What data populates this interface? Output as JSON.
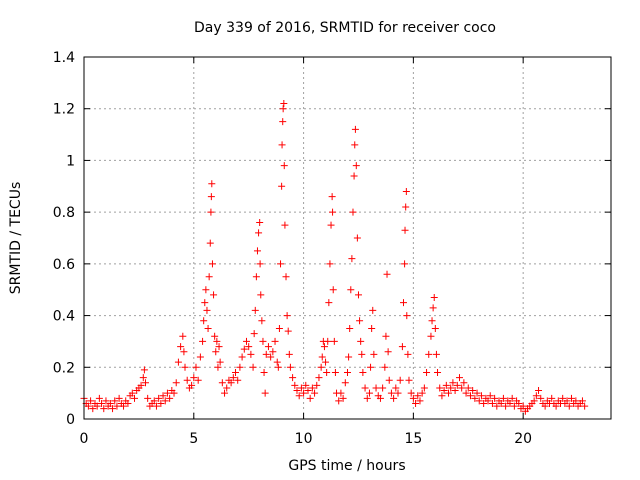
{
  "chart_data": {
    "type": "scatter",
    "title": "Day 339 of 2016, SRMTID for receiver coco",
    "xlabel": "GPS time / hours",
    "ylabel": "SRMTID / TECUs",
    "xlim": [
      0,
      24
    ],
    "ylim": [
      0,
      1.4
    ],
    "xticks": [
      0,
      5,
      10,
      15,
      20
    ],
    "yticks": [
      0,
      0.2,
      0.4,
      0.6,
      0.8,
      1,
      1.2,
      1.4
    ],
    "xtick_labels": [
      "0",
      "5",
      "10",
      "15",
      "20"
    ],
    "ytick_labels": [
      "0",
      "0.2",
      "0.4",
      "0.6",
      "0.8",
      "1",
      "1.2",
      "1.4"
    ],
    "grid": true,
    "marker": "+",
    "color": "#ff0000",
    "series": [
      {
        "name": "SRMTID",
        "points": [
          [
            0.0,
            0.08
          ],
          [
            0.1,
            0.06
          ],
          [
            0.2,
            0.05
          ],
          [
            0.3,
            0.07
          ],
          [
            0.4,
            0.04
          ],
          [
            0.5,
            0.06
          ],
          [
            0.6,
            0.05
          ],
          [
            0.7,
            0.08
          ],
          [
            0.8,
            0.06
          ],
          [
            0.9,
            0.04
          ],
          [
            1.0,
            0.07
          ],
          [
            1.1,
            0.05
          ],
          [
            1.2,
            0.06
          ],
          [
            1.3,
            0.04
          ],
          [
            1.4,
            0.07
          ],
          [
            1.5,
            0.05
          ],
          [
            1.6,
            0.08
          ],
          [
            1.7,
            0.06
          ],
          [
            1.8,
            0.05
          ],
          [
            1.9,
            0.07
          ],
          [
            2.0,
            0.06
          ],
          [
            2.1,
            0.09
          ],
          [
            2.2,
            0.1
          ],
          [
            2.3,
            0.08
          ],
          [
            2.4,
            0.11
          ],
          [
            2.5,
            0.12
          ],
          [
            2.6,
            0.13
          ],
          [
            2.7,
            0.16
          ],
          [
            2.75,
            0.19
          ],
          [
            2.8,
            0.14
          ],
          [
            2.9,
            0.08
          ],
          [
            3.0,
            0.05
          ],
          [
            3.1,
            0.06
          ],
          [
            3.2,
            0.07
          ],
          [
            3.3,
            0.05
          ],
          [
            3.4,
            0.08
          ],
          [
            3.5,
            0.06
          ],
          [
            3.6,
            0.09
          ],
          [
            3.7,
            0.07
          ],
          [
            3.8,
            0.1
          ],
          [
            3.9,
            0.08
          ],
          [
            4.0,
            0.11
          ],
          [
            4.1,
            0.1
          ],
          [
            4.2,
            0.14
          ],
          [
            4.3,
            0.22
          ],
          [
            4.4,
            0.28
          ],
          [
            4.5,
            0.32
          ],
          [
            4.55,
            0.26
          ],
          [
            4.6,
            0.2
          ],
          [
            4.7,
            0.15
          ],
          [
            4.8,
            0.12
          ],
          [
            4.9,
            0.13
          ],
          [
            5.0,
            0.16
          ],
          [
            5.1,
            0.2
          ],
          [
            5.2,
            0.15
          ],
          [
            5.3,
            0.24
          ],
          [
            5.4,
            0.3
          ],
          [
            5.45,
            0.38
          ],
          [
            5.5,
            0.45
          ],
          [
            5.55,
            0.5
          ],
          [
            5.6,
            0.42
          ],
          [
            5.65,
            0.35
          ],
          [
            5.7,
            0.55
          ],
          [
            5.75,
            0.68
          ],
          [
            5.78,
            0.8
          ],
          [
            5.8,
            0.86
          ],
          [
            5.82,
            0.91
          ],
          [
            5.85,
            0.6
          ],
          [
            5.9,
            0.48
          ],
          [
            5.95,
            0.32
          ],
          [
            6.0,
            0.26
          ],
          [
            6.05,
            0.3
          ],
          [
            6.1,
            0.2
          ],
          [
            6.15,
            0.28
          ],
          [
            6.2,
            0.22
          ],
          [
            6.3,
            0.14
          ],
          [
            6.4,
            0.1
          ],
          [
            6.5,
            0.12
          ],
          [
            6.6,
            0.15
          ],
          [
            6.7,
            0.14
          ],
          [
            6.8,
            0.16
          ],
          [
            6.9,
            0.18
          ],
          [
            7.0,
            0.15
          ],
          [
            7.1,
            0.2
          ],
          [
            7.2,
            0.24
          ],
          [
            7.3,
            0.27
          ],
          [
            7.4,
            0.3
          ],
          [
            7.5,
            0.28
          ],
          [
            7.6,
            0.25
          ],
          [
            7.7,
            0.2
          ],
          [
            7.75,
            0.33
          ],
          [
            7.8,
            0.42
          ],
          [
            7.85,
            0.55
          ],
          [
            7.9,
            0.65
          ],
          [
            7.95,
            0.72
          ],
          [
            8.0,
            0.76
          ],
          [
            8.02,
            0.6
          ],
          [
            8.05,
            0.48
          ],
          [
            8.1,
            0.38
          ],
          [
            8.15,
            0.3
          ],
          [
            8.2,
            0.18
          ],
          [
            8.25,
            0.1
          ],
          [
            8.3,
            0.25
          ],
          [
            8.4,
            0.28
          ],
          [
            8.5,
            0.24
          ],
          [
            8.6,
            0.26
          ],
          [
            8.7,
            0.3
          ],
          [
            8.8,
            0.22
          ],
          [
            8.85,
            0.2
          ],
          [
            8.9,
            0.35
          ],
          [
            8.95,
            0.6
          ],
          [
            9.0,
            0.9
          ],
          [
            9.02,
            1.06
          ],
          [
            9.05,
            1.15
          ],
          [
            9.07,
            1.2
          ],
          [
            9.1,
            1.22
          ],
          [
            9.12,
            0.98
          ],
          [
            9.15,
            0.75
          ],
          [
            9.2,
            0.55
          ],
          [
            9.25,
            0.4
          ],
          [
            9.3,
            0.34
          ],
          [
            9.35,
            0.25
          ],
          [
            9.4,
            0.2
          ],
          [
            9.5,
            0.16
          ],
          [
            9.6,
            0.13
          ],
          [
            9.7,
            0.11
          ],
          [
            9.8,
            0.09
          ],
          [
            9.9,
            0.12
          ],
          [
            10.0,
            0.1
          ],
          [
            10.1,
            0.13
          ],
          [
            10.2,
            0.11
          ],
          [
            10.3,
            0.08
          ],
          [
            10.4,
            0.12
          ],
          [
            10.5,
            0.1
          ],
          [
            10.6,
            0.13
          ],
          [
            10.7,
            0.16
          ],
          [
            10.8,
            0.2
          ],
          [
            10.85,
            0.24
          ],
          [
            10.9,
            0.3
          ],
          [
            10.95,
            0.28
          ],
          [
            11.0,
            0.22
          ],
          [
            11.05,
            0.18
          ],
          [
            11.1,
            0.3
          ],
          [
            11.15,
            0.45
          ],
          [
            11.2,
            0.6
          ],
          [
            11.25,
            0.75
          ],
          [
            11.3,
            0.86
          ],
          [
            11.32,
            0.8
          ],
          [
            11.35,
            0.5
          ],
          [
            11.4,
            0.3
          ],
          [
            11.45,
            0.18
          ],
          [
            11.5,
            0.1
          ],
          [
            11.6,
            0.07
          ],
          [
            11.7,
            0.1
          ],
          [
            11.8,
            0.08
          ],
          [
            11.9,
            0.14
          ],
          [
            12.0,
            0.18
          ],
          [
            12.05,
            0.24
          ],
          [
            12.1,
            0.35
          ],
          [
            12.15,
            0.5
          ],
          [
            12.2,
            0.62
          ],
          [
            12.25,
            0.8
          ],
          [
            12.3,
            0.94
          ],
          [
            12.33,
            1.06
          ],
          [
            12.36,
            1.12
          ],
          [
            12.4,
            0.98
          ],
          [
            12.45,
            0.7
          ],
          [
            12.5,
            0.48
          ],
          [
            12.55,
            0.38
          ],
          [
            12.6,
            0.3
          ],
          [
            12.65,
            0.25
          ],
          [
            12.7,
            0.18
          ],
          [
            12.8,
            0.12
          ],
          [
            12.9,
            0.08
          ],
          [
            13.0,
            0.1
          ],
          [
            13.05,
            0.2
          ],
          [
            13.1,
            0.35
          ],
          [
            13.15,
            0.42
          ],
          [
            13.2,
            0.25
          ],
          [
            13.3,
            0.12
          ],
          [
            13.4,
            0.09
          ],
          [
            13.5,
            0.08
          ],
          [
            13.6,
            0.12
          ],
          [
            13.7,
            0.2
          ],
          [
            13.75,
            0.32
          ],
          [
            13.8,
            0.56
          ],
          [
            13.85,
            0.26
          ],
          [
            13.9,
            0.15
          ],
          [
            14.0,
            0.1
          ],
          [
            14.1,
            0.08
          ],
          [
            14.2,
            0.12
          ],
          [
            14.3,
            0.1
          ],
          [
            14.4,
            0.15
          ],
          [
            14.5,
            0.28
          ],
          [
            14.55,
            0.45
          ],
          [
            14.6,
            0.6
          ],
          [
            14.62,
            0.73
          ],
          [
            14.65,
            0.82
          ],
          [
            14.68,
            0.88
          ],
          [
            14.7,
            0.4
          ],
          [
            14.75,
            0.25
          ],
          [
            14.8,
            0.15
          ],
          [
            14.9,
            0.1
          ],
          [
            15.0,
            0.08
          ],
          [
            15.1,
            0.06
          ],
          [
            15.2,
            0.09
          ],
          [
            15.3,
            0.07
          ],
          [
            15.4,
            0.1
          ],
          [
            15.5,
            0.12
          ],
          [
            15.6,
            0.18
          ],
          [
            15.7,
            0.25
          ],
          [
            15.8,
            0.32
          ],
          [
            15.85,
            0.38
          ],
          [
            15.9,
            0.43
          ],
          [
            15.95,
            0.47
          ],
          [
            16.0,
            0.35
          ],
          [
            16.05,
            0.25
          ],
          [
            16.1,
            0.18
          ],
          [
            16.2,
            0.12
          ],
          [
            16.3,
            0.09
          ],
          [
            16.4,
            0.11
          ],
          [
            16.5,
            0.13
          ],
          [
            16.6,
            0.1
          ],
          [
            16.7,
            0.12
          ],
          [
            16.8,
            0.14
          ],
          [
            16.9,
            0.11
          ],
          [
            17.0,
            0.13
          ],
          [
            17.1,
            0.16
          ],
          [
            17.2,
            0.12
          ],
          [
            17.3,
            0.14
          ],
          [
            17.4,
            0.1
          ],
          [
            17.5,
            0.12
          ],
          [
            17.6,
            0.09
          ],
          [
            17.7,
            0.11
          ],
          [
            17.8,
            0.08
          ],
          [
            17.9,
            0.1
          ],
          [
            18.0,
            0.07
          ],
          [
            18.1,
            0.09
          ],
          [
            18.2,
            0.06
          ],
          [
            18.3,
            0.08
          ],
          [
            18.4,
            0.07
          ],
          [
            18.5,
            0.09
          ],
          [
            18.6,
            0.06
          ],
          [
            18.7,
            0.08
          ],
          [
            18.8,
            0.05
          ],
          [
            18.9,
            0.07
          ],
          [
            19.0,
            0.06
          ],
          [
            19.1,
            0.08
          ],
          [
            19.2,
            0.05
          ],
          [
            19.3,
            0.07
          ],
          [
            19.4,
            0.06
          ],
          [
            19.5,
            0.08
          ],
          [
            19.6,
            0.05
          ],
          [
            19.7,
            0.07
          ],
          [
            19.8,
            0.06
          ],
          [
            19.9,
            0.04
          ],
          [
            20.0,
            0.05
          ],
          [
            20.1,
            0.03
          ],
          [
            20.2,
            0.04
          ],
          [
            20.3,
            0.05
          ],
          [
            20.4,
            0.06
          ],
          [
            20.5,
            0.07
          ],
          [
            20.6,
            0.09
          ],
          [
            20.7,
            0.11
          ],
          [
            20.8,
            0.08
          ],
          [
            20.9,
            0.06
          ],
          [
            21.0,
            0.05
          ],
          [
            21.1,
            0.07
          ],
          [
            21.2,
            0.06
          ],
          [
            21.3,
            0.08
          ],
          [
            21.4,
            0.06
          ],
          [
            21.5,
            0.05
          ],
          [
            21.6,
            0.07
          ],
          [
            21.7,
            0.06
          ],
          [
            21.8,
            0.08
          ],
          [
            21.9,
            0.06
          ],
          [
            22.0,
            0.07
          ],
          [
            22.1,
            0.05
          ],
          [
            22.2,
            0.08
          ],
          [
            22.3,
            0.06
          ],
          [
            22.4,
            0.07
          ],
          [
            22.5,
            0.05
          ],
          [
            22.6,
            0.06
          ],
          [
            22.7,
            0.07
          ],
          [
            22.8,
            0.05
          ]
        ]
      }
    ]
  }
}
